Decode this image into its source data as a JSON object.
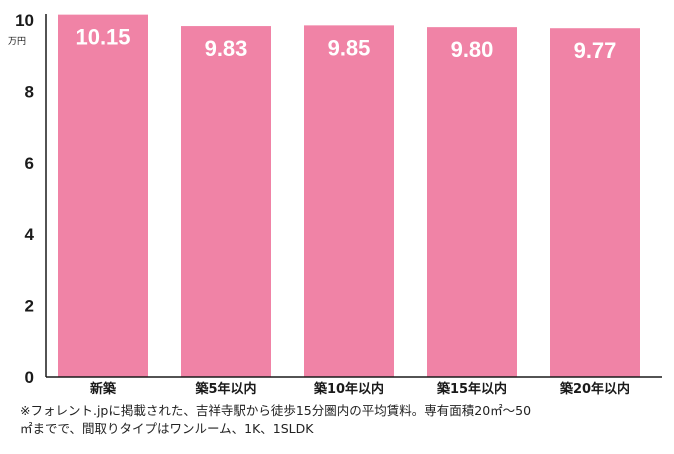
{
  "chart_data": {
    "type": "bar",
    "categories": [
      "新築",
      "築5年以内",
      "築10年以内",
      "築15年以内",
      "築20年以内"
    ],
    "values": [
      10.15,
      9.83,
      9.85,
      9.8,
      9.77
    ],
    "value_labels": [
      "10.15",
      "9.83",
      "9.85",
      "9.80",
      "9.77"
    ],
    "ylim": [
      0,
      10
    ],
    "yticks": [
      "0",
      "2",
      "4",
      "6",
      "8",
      "10"
    ],
    "ytick_values": [
      0,
      2,
      4,
      6,
      8,
      10
    ],
    "unit": "万円",
    "bar_color": "#f083a6",
    "grid": false
  },
  "footnote": {
    "line1": "※フォレント.jpに掲載された、吉祥寺駅から徒歩15分圏内の平均賃料。専有面積20㎡〜50",
    "line2": "㎡までで、間取りタイプはワンルーム、1K、1SLDK"
  }
}
